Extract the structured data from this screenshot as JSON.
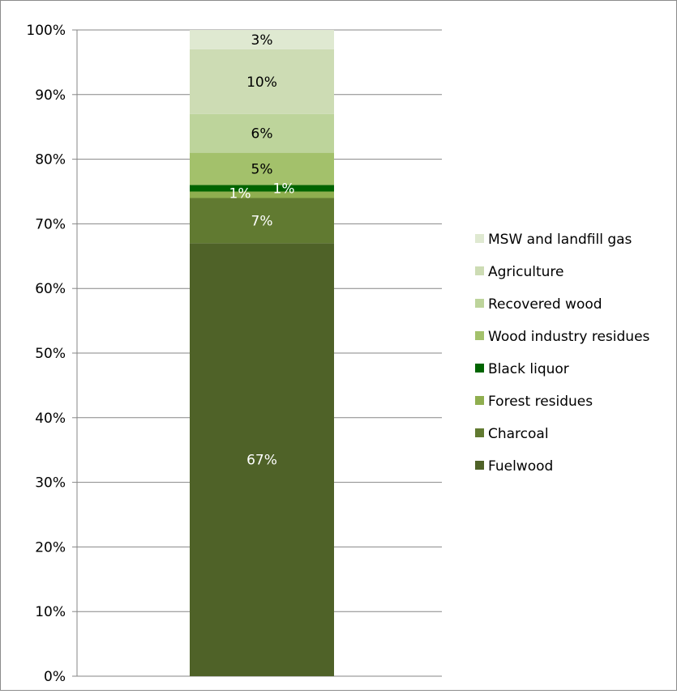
{
  "chart_data": {
    "type": "bar",
    "stacked": true,
    "percent_stacked": true,
    "categories": [
      ""
    ],
    "y_axis": {
      "ylim": [
        0,
        100
      ],
      "ticks": [
        "0%",
        "10%",
        "20%",
        "30%",
        "40%",
        "50%",
        "60%",
        "70%",
        "80%",
        "90%",
        "100%"
      ]
    },
    "grid": true,
    "legend_position": "right",
    "series": [
      {
        "name": "Fuelwood",
        "values": [
          67
        ],
        "label": "67%",
        "color": "#4f6228",
        "label_color": "#ffffff"
      },
      {
        "name": "Charcoal",
        "values": [
          7
        ],
        "label": "7%",
        "color": "#617a31",
        "label_color": "#ffffff"
      },
      {
        "name": "Forest residues",
        "values": [
          1
        ],
        "label": "1%",
        "color": "#8fae4f",
        "label_color": "#ffffff"
      },
      {
        "name": "Black liquor",
        "values": [
          1
        ],
        "label": "1%",
        "color": "#006400",
        "label_color": "#ffffff"
      },
      {
        "name": "Wood industry residues",
        "values": [
          5
        ],
        "label": "5%",
        "color": "#a3c16b",
        "label_color": "#000000"
      },
      {
        "name": "Recovered wood",
        "values": [
          6
        ],
        "label": "6%",
        "color": "#bdd49b",
        "label_color": "#000000"
      },
      {
        "name": "Agriculture",
        "values": [
          10
        ],
        "label": "10%",
        "color": "#cddcb4",
        "label_color": "#000000"
      },
      {
        "name": "MSW and landfill gas",
        "values": [
          3
        ],
        "label": "3%",
        "color": "#dfe9d1",
        "label_color": "#000000"
      }
    ],
    "legend_order": [
      "MSW and landfill gas",
      "Agriculture",
      "Recovered wood",
      "Wood industry residues",
      "Black liquor",
      "Forest residues",
      "Charcoal",
      "Fuelwood"
    ]
  }
}
